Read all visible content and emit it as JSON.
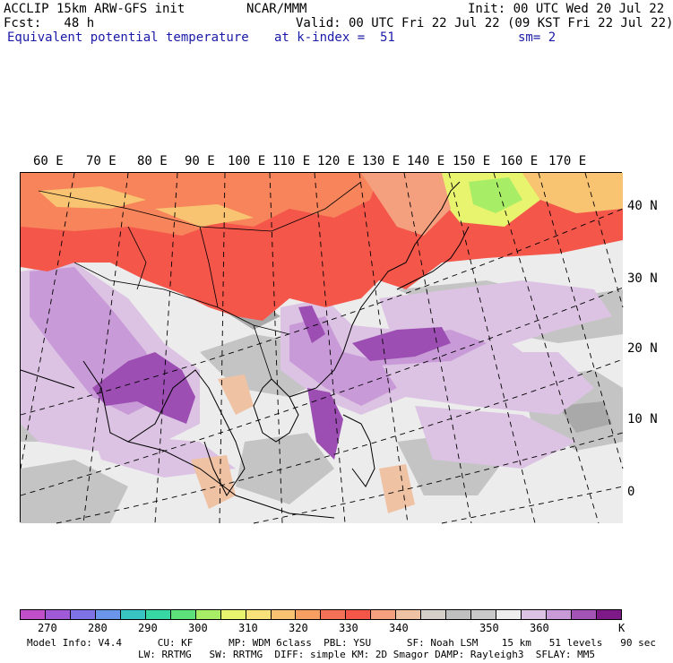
{
  "header": {
    "line1_left": "ACCLIP 15km ARW-GFS init",
    "line1_center": "NCAR/MMM",
    "line1_right": "Init: 00 UTC Wed 20 Jul 22",
    "line2_left": "Fcst:   48 h",
    "line2_right": "Valid: 00 UTC Fri 22 Jul 22 (09 KST Fri 22 Jul 22)",
    "line3_field": "Equivalent potential temperature",
    "line3_level": "at k-index =  51",
    "line3_smooth": "sm= 2"
  },
  "map": {
    "longitude_labels": [
      "60 E",
      "70 E",
      "80 E",
      "90 E",
      "100 E",
      "110 E",
      "120 E",
      "130 E",
      "140 E",
      "150 E",
      "160 E",
      "170 E"
    ],
    "latitude_labels": [
      "40 N",
      "30 N",
      "20 N",
      "10 N",
      "0"
    ]
  },
  "colorbar": {
    "unit": "K",
    "tick_labels": [
      "270",
      "280",
      "290",
      "300",
      "310",
      "320",
      "330",
      "340",
      "350",
      "360"
    ],
    "colors": [
      "#c04fc9",
      "#a05ad8",
      "#7f72e6",
      "#6a95ea",
      "#39c4c4",
      "#37d8a4",
      "#5ce17b",
      "#a7ed66",
      "#e8f36e",
      "#f9e27a",
      "#f9c472",
      "#f79e62",
      "#f47158",
      "#f4564a",
      "#f4a07f",
      "#f0c2a4",
      "#d4cfc9",
      "#bfbfbf",
      "#c9c9c9",
      "#eeeeee",
      "#dcc3e3",
      "#c99ad8",
      "#a352b6",
      "#7d1a87"
    ]
  },
  "footer": {
    "line1": "Model Info: V4.4      CU: KF      MP: WDM 6class  PBL: YSU      SF: Noah LSM    15 km   51 levels   90 sec",
    "line2": "LW: RRTMG   SW: RRTMG  DIFF: simple KM: 2D Smagor DAMP: Rayleigh3  SFLAY: MM5"
  }
}
